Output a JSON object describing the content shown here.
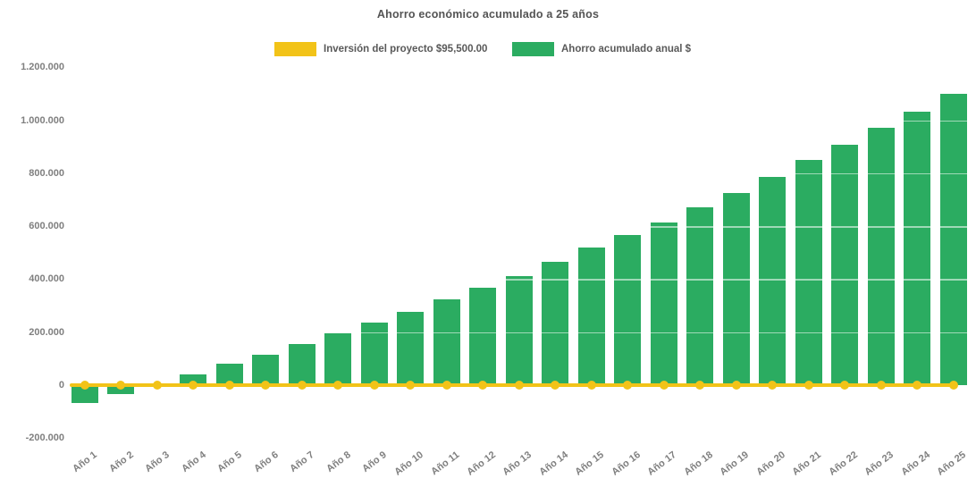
{
  "title": "Ahorro económico acumulado a 25 años",
  "legend": [
    {
      "id": "investment",
      "label": "Inversión del proyecto $95,500.00",
      "color": "#F2C318",
      "swatch_shape": "rect"
    },
    {
      "id": "savings",
      "label": "Ahorro acumulado anual $",
      "color": "#2BAC61",
      "swatch_shape": "rect"
    }
  ],
  "chart_data": {
    "type": "bar",
    "title": "Ahorro económico acumulado a 25 años",
    "legend_position": "top",
    "grid": "off",
    "categories": [
      "Año 1",
      "Año 2",
      "Año 3",
      "Año 4",
      "Año 5",
      "Año 6",
      "Año 7",
      "Año 8",
      "Año 9",
      "Año 10",
      "Año 11",
      "Año 12",
      "Año 13",
      "Año 14",
      "Año 15",
      "Año 16",
      "Año 17",
      "Año 18",
      "Año 19",
      "Año 20",
      "Año 21",
      "Año 22",
      "Año 23",
      "Año 24",
      "Año 25"
    ],
    "series": [
      {
        "name": "Inversión del proyecto $95,500.00",
        "type": "line",
        "color": "#F2C318",
        "marker": "circle",
        "values": [
          0,
          0,
          0,
          0,
          0,
          0,
          0,
          0,
          0,
          0,
          0,
          0,
          0,
          0,
          0,
          0,
          0,
          0,
          0,
          0,
          0,
          0,
          0,
          0,
          0
        ]
      },
      {
        "name": "Ahorro acumulado anual $",
        "type": "column",
        "color": "#2BAC61",
        "values": [
          -67000,
          -35000,
          2000,
          42000,
          80000,
          113000,
          154000,
          196000,
          237000,
          278000,
          324000,
          366000,
          413000,
          465000,
          520000,
          566000,
          614000,
          670000,
          726000,
          786000,
          850000,
          908000,
          972000,
          1032000,
          1098000
        ]
      }
    ],
    "x_axis": {
      "label_rotation_deg": -37
    },
    "y_axis": {
      "min": -200000,
      "max": 1200000,
      "tick_step": 200000,
      "ticks": [
        {
          "label": "1.200.000",
          "value": 1200000
        },
        {
          "label": "1.000.000",
          "value": 1000000
        },
        {
          "label": "800.000",
          "value": 800000
        },
        {
          "label": "600.000",
          "value": 600000
        },
        {
          "label": "400.000",
          "value": 400000
        },
        {
          "label": "200.000",
          "value": 200000
        },
        {
          "label": "0",
          "value": 0
        },
        {
          "label": "-200.000",
          "value": -200000
        }
      ]
    }
  }
}
